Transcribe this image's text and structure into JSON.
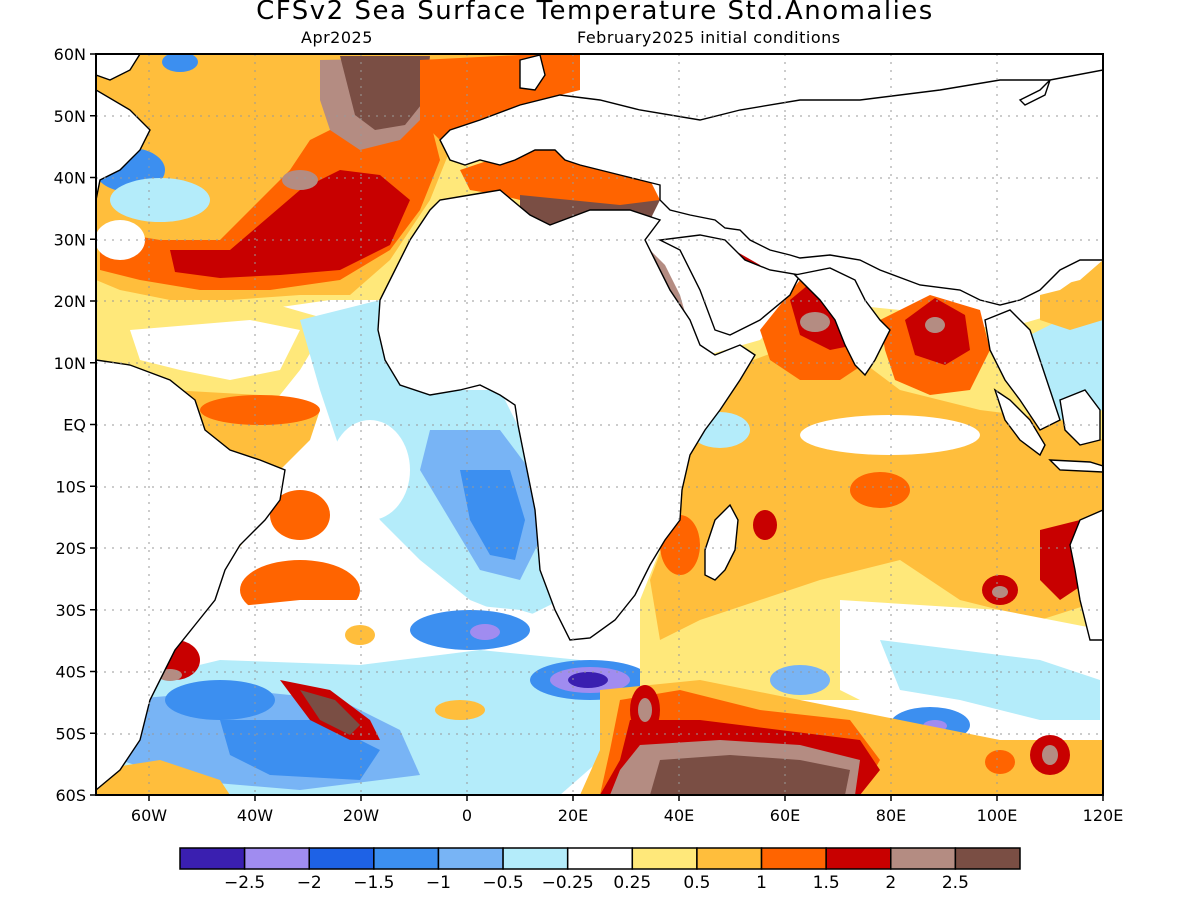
{
  "title": "CFSv2 Sea Surface Temperature Std.Anomalies",
  "subtitle_left": "Apr2025",
  "subtitle_right": "February2025 initial conditions",
  "map": {
    "lon_range": [
      -70,
      120
    ],
    "lat_range": [
      -60,
      60
    ],
    "lat_ticks": [
      {
        "value": 60,
        "label": "60N"
      },
      {
        "value": 50,
        "label": "50N"
      },
      {
        "value": 40,
        "label": "40N"
      },
      {
        "value": 30,
        "label": "30N"
      },
      {
        "value": 20,
        "label": "20N"
      },
      {
        "value": 10,
        "label": "10N"
      },
      {
        "value": 0,
        "label": "EQ"
      },
      {
        "value": -10,
        "label": "10S"
      },
      {
        "value": -20,
        "label": "20S"
      },
      {
        "value": -30,
        "label": "30S"
      },
      {
        "value": -40,
        "label": "40S"
      },
      {
        "value": -50,
        "label": "50S"
      },
      {
        "value": -60,
        "label": "60S"
      }
    ],
    "lon_ticks": [
      {
        "value": -60,
        "label": "60W"
      },
      {
        "value": -40,
        "label": "40W"
      },
      {
        "value": -20,
        "label": "20W"
      },
      {
        "value": 0,
        "label": "0"
      },
      {
        "value": 20,
        "label": "20E"
      },
      {
        "value": 40,
        "label": "40E"
      },
      {
        "value": 60,
        "label": "60E"
      },
      {
        "value": 80,
        "label": "80E"
      },
      {
        "value": 100,
        "label": "100E"
      },
      {
        "value": 120,
        "label": "120E"
      }
    ],
    "grid": "dotted"
  },
  "colorbar": {
    "colors": [
      "#3a1fb0",
      "#a08cf0",
      "#1e62e6",
      "#3c8ff0",
      "#78b4f5",
      "#b4ecfa",
      "#ffffff",
      "#ffe87a",
      "#ffbe3c",
      "#ff6400",
      "#c80000",
      "#b48c82",
      "#7a4e44"
    ],
    "labels": [
      "−2.5",
      "−2",
      "−1.5",
      "−1",
      "−0.5",
      "−0.25",
      "0.25",
      "0.5",
      "1",
      "1.5",
      "2",
      "2.5"
    ]
  },
  "anomaly_regions": [
    {
      "name": "north-atlantic-subtropical-warm",
      "lon": -40,
      "lat": 35,
      "value": 1.5
    },
    {
      "name": "gulf-of-guinea-cool",
      "lon": 5,
      "lat": -12,
      "value": -1.0
    },
    {
      "name": "south-atlantic-cool",
      "lon": -5,
      "lat": -40,
      "value": -1.5
    },
    {
      "name": "agulhas-cool-core",
      "lon": 20,
      "lat": -41,
      "value": -2.5
    },
    {
      "name": "mediterranean-warm",
      "lon": 20,
      "lat": 36,
      "value": 2.5
    },
    {
      "name": "arabian-sea-warm",
      "lon": 65,
      "lat": 17,
      "value": 2.0
    },
    {
      "name": "bay-of-bengal-warm",
      "lon": 88,
      "lat": 15,
      "value": 2.0
    },
    {
      "name": "southern-indian-ocean-warm",
      "lon": 60,
      "lat": -55,
      "value": 2.5
    },
    {
      "name": "south-atlantic-southwest-warm",
      "lon": -35,
      "lat": -45,
      "value": 2.5
    }
  ]
}
